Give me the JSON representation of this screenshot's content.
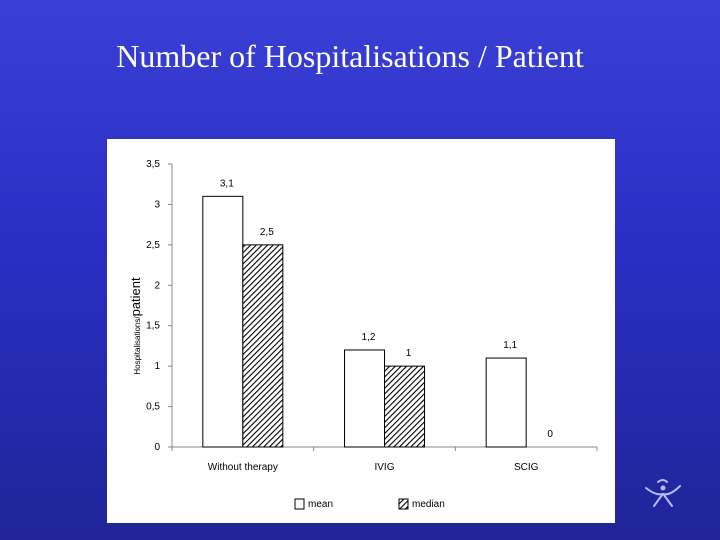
{
  "slide": {
    "title": "Number of Hospitalisations / Patient"
  },
  "chart_data": {
    "type": "bar",
    "title": "",
    "xlabel": "",
    "ylabel_main": "Hospitalisations/",
    "ylabel_tail": "patient",
    "ylim": [
      0,
      3.5
    ],
    "yticks": [
      "0",
      "0,5",
      "1",
      "1,5",
      "2",
      "2,5",
      "3",
      "3,5"
    ],
    "categories": [
      "Without therapy",
      "IVIG",
      "SCIG"
    ],
    "series": [
      {
        "name": "mean",
        "values": [
          3.1,
          1.2,
          1.1
        ],
        "labels": [
          "3,1",
          "1,2",
          "1,1"
        ],
        "fill": "white"
      },
      {
        "name": "median",
        "values": [
          2.5,
          1.0,
          0.0
        ],
        "labels": [
          "2,5",
          "1",
          "0"
        ],
        "fill": "hatched"
      }
    ],
    "legend_position": "bottom",
    "grid": false
  },
  "colors": {
    "background_top": "#3a3fd6",
    "background_bottom": "#1f2598",
    "title": "#ffffff"
  }
}
